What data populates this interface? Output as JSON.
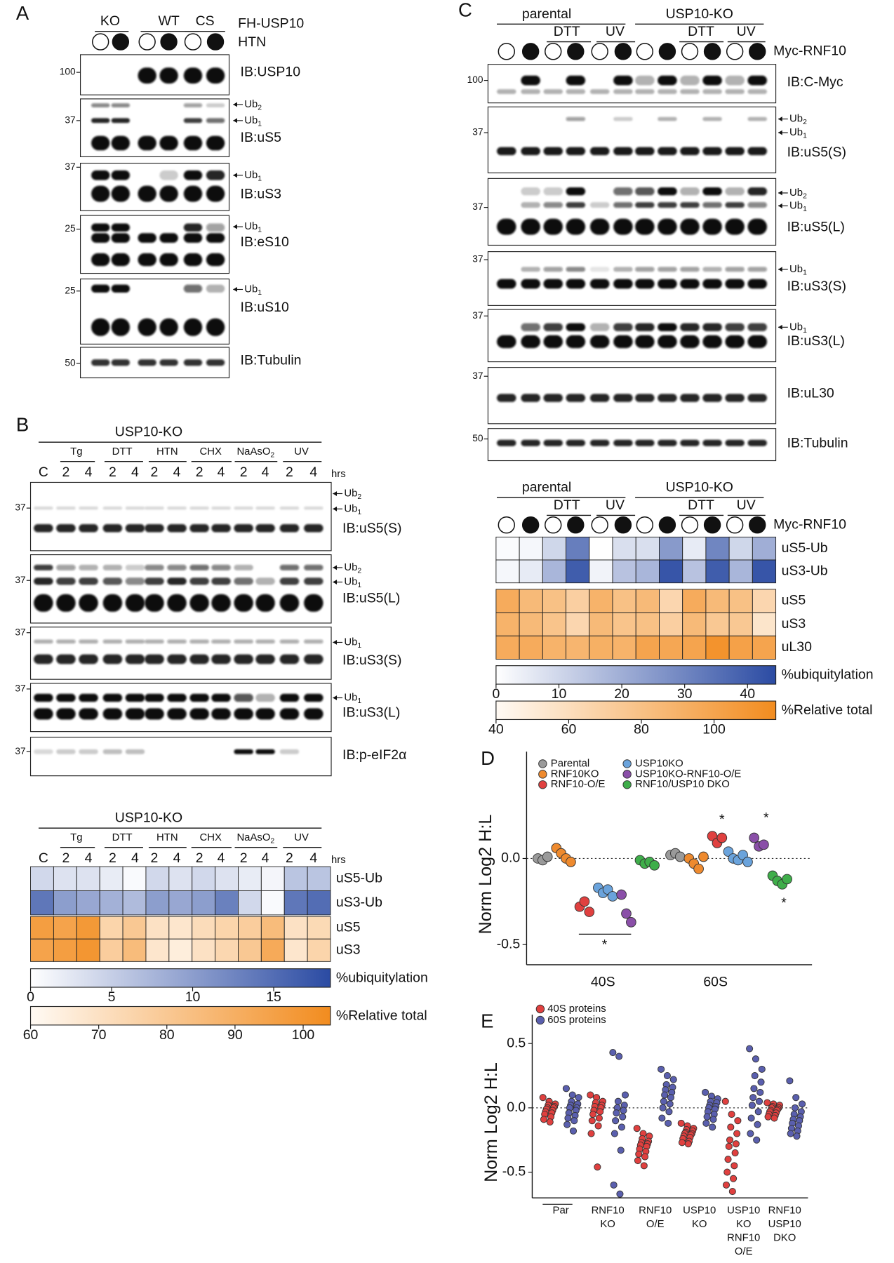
{
  "panel_a": {
    "label": "A",
    "groups": [
      "KO",
      "WT",
      "CS"
    ],
    "construct": "FH-USP10",
    "treatment": "HTN",
    "blots": [
      {
        "mw": 100,
        "antibody": "IB:USP10",
        "marks": []
      },
      {
        "mw": 37,
        "antibody": "IB:uS5",
        "marks": [
          {
            "text": "Ub",
            "sub": "2"
          },
          {
            "text": "Ub",
            "sub": "1"
          }
        ]
      },
      {
        "mw": 37,
        "antibody": "IB:uS3",
        "marks": [
          {
            "text": "Ub",
            "sub": "1"
          }
        ]
      },
      {
        "mw": 25,
        "antibody": "IB:eS10",
        "marks": [
          {
            "text": "Ub",
            "sub": "1"
          }
        ]
      },
      {
        "mw": 25,
        "antibody": "IB:uS10",
        "marks": [
          {
            "text": "Ub",
            "sub": "1"
          }
        ]
      },
      {
        "mw": 50,
        "antibody": "IB:Tubulin",
        "marks": []
      }
    ]
  },
  "panel_b": {
    "label": "B",
    "cell_line": "USP10-KO",
    "groups": [
      "Tg",
      "DTT",
      "HTN",
      "CHX",
      {
        "text": "NaAsO",
        "sub": "2"
      },
      "UV"
    ],
    "lanes": [
      "C",
      2,
      4,
      2,
      4,
      2,
      4,
      2,
      4,
      2,
      4,
      2,
      4
    ],
    "unit": "hrs",
    "blots": [
      {
        "mw": 37,
        "antibody": "IB:uS5(S)",
        "marks": [
          {
            "text": "Ub",
            "sub": "2"
          },
          {
            "text": "Ub",
            "sub": "1"
          }
        ]
      },
      {
        "mw": 37,
        "antibody": "IB:uS5(L)",
        "marks": [
          {
            "text": "Ub",
            "sub": "2"
          },
          {
            "text": "Ub",
            "sub": "1"
          }
        ]
      },
      {
        "mw": 37,
        "antibody": "IB:uS3(S)",
        "marks": [
          {
            "text": "Ub",
            "sub": "1"
          }
        ]
      },
      {
        "mw": 37,
        "antibody": "IB:uS3(L)",
        "marks": [
          {
            "text": "Ub",
            "sub": "1"
          }
        ]
      },
      {
        "mw": 37,
        "antibody": "IB:p-eIF2α",
        "marks": []
      }
    ],
    "heatmap": {
      "cell_line": "USP10-KO",
      "groups": [
        "Tg",
        "DTT",
        "HTN",
        "CHX",
        {
          "text": "NaAsO",
          "sub": "2"
        },
        "UV"
      ],
      "lanes": [
        "C",
        2,
        4,
        2,
        4,
        2,
        4,
        2,
        4,
        2,
        4,
        2,
        4
      ],
      "unit": "hrs",
      "ubiquitylation": {
        "rows": [
          "uS5-Ub",
          "uS3-Ub"
        ],
        "values": [
          [
            4,
            3,
            3,
            2,
            0.5,
            4,
            3,
            4,
            3,
            2,
            1,
            6,
            6
          ],
          [
            14,
            10,
            9,
            8,
            7,
            10,
            9,
            10,
            13,
            4,
            0.5,
            14,
            15
          ]
        ],
        "scale": {
          "label": "%ubiquitylation",
          "lim": [
            0,
            18.5
          ],
          "ticks": [
            0,
            5,
            10,
            15
          ],
          "colors": [
            "#ffffff",
            "#2b4ba3"
          ]
        }
      },
      "relative_total": {
        "rows": [
          "uS5",
          "uS3"
        ],
        "values": [
          [
            97,
            95,
            99,
            75,
            80,
            70,
            68,
            72,
            75,
            78,
            85,
            70,
            73
          ],
          [
            95,
            97,
            100,
            78,
            85,
            68,
            65,
            70,
            74,
            80,
            92,
            68,
            75
          ]
        ],
        "scale": {
          "label": "%Relative total",
          "lim": [
            60,
            104
          ],
          "ticks": [
            60,
            70,
            80,
            90,
            100
          ],
          "colors": [
            "#fffaf4",
            "#f28c1f"
          ]
        }
      }
    }
  },
  "panel_c": {
    "label": "C",
    "lines": [
      "parental",
      "USP10-KO"
    ],
    "treatments": [
      "DTT",
      "UV",
      "DTT",
      "UV"
    ],
    "construct": "Myc-RNF10",
    "blots": [
      {
        "mw": 100,
        "antibody": "IB:C-Myc",
        "marks": []
      },
      {
        "mw": 37,
        "antibody": "IB:uS5(S)",
        "marks": [
          {
            "text": "Ub",
            "sub": "2"
          },
          {
            "text": "Ub",
            "sub": "1"
          }
        ]
      },
      {
        "mw": 37,
        "antibody": "IB:uS5(L)",
        "marks": [
          {
            "text": "Ub",
            "sub": "2"
          },
          {
            "text": "Ub",
            "sub": "1"
          }
        ]
      },
      {
        "mw": 37,
        "antibody": "IB:uS3(S)",
        "marks": [
          {
            "text": "Ub",
            "sub": "1"
          }
        ]
      },
      {
        "mw": 37,
        "antibody": "IB:uS3(L)",
        "marks": [
          {
            "text": "Ub",
            "sub": "1"
          }
        ]
      },
      {
        "mw": 37,
        "antibody": "IB:uL30",
        "marks": []
      },
      {
        "mw": 50,
        "antibody": "IB:Tubulin",
        "marks": []
      }
    ],
    "heatmap": {
      "lines": [
        "parental",
        "USP10-KO"
      ],
      "treatments": [
        "DTT",
        "UV",
        "DTT",
        "UV"
      ],
      "construct": "Myc-RNF10",
      "ubiquitylation": {
        "rows": [
          "uS5-Ub",
          "uS3-Ub"
        ],
        "values": [
          [
            1,
            2,
            10,
            32,
            0,
            8,
            8,
            25,
            5,
            30,
            10,
            20
          ],
          [
            2,
            5,
            18,
            40,
            3,
            15,
            18,
            42,
            15,
            40,
            18,
            42
          ]
        ],
        "scale": {
          "label": "%ubiquitylation",
          "lim": [
            0,
            44.5
          ],
          "ticks": [
            0,
            10,
            20,
            30,
            40
          ],
          "colors": [
            "#ffffff",
            "#2b4ba3"
          ]
        }
      },
      "relative_total": {
        "rows": [
          "uS5",
          "uS3",
          "uL30"
        ],
        "values": [
          [
            95,
            85,
            80,
            70,
            90,
            80,
            85,
            65,
            95,
            85,
            80,
            65
          ],
          [
            90,
            85,
            78,
            65,
            85,
            78,
            80,
            70,
            85,
            75,
            75,
            55
          ],
          [
            95,
            95,
            90,
            88,
            92,
            90,
            100,
            98,
            100,
            112,
            102,
            100
          ]
        ],
        "scale": {
          "label": "%Relative total",
          "lim": [
            40,
            117
          ],
          "ticks": [
            40,
            60,
            80,
            100
          ],
          "colors": [
            "#fffaf4",
            "#f28c1f"
          ]
        }
      }
    }
  },
  "chart_data": [
    {
      "type": "dot",
      "panel": "D",
      "ylabel": "Norm Log2 H:L",
      "categories": [
        "40S",
        "60S"
      ],
      "ylim": [
        -0.617,
        0.62
      ],
      "yticks": [
        {
          "value": 0,
          "label": "0.0"
        },
        {
          "value": -0.5,
          "label": "-0.5"
        }
      ],
      "reference_line": 0,
      "series": [
        {
          "name": "Parental",
          "color": "#9a9a9a",
          "values": [
            [
              0,
              -0.01,
              0.01
            ],
            [
              0.02,
              0.03,
              0.01
            ]
          ]
        },
        {
          "name": "RNF10KO",
          "color": "#ee8a2e",
          "values": [
            [
              0.06,
              0.03,
              0,
              -0.02
            ],
            [
              0,
              -0.03,
              -0.06,
              0.01
            ]
          ]
        },
        {
          "name": "RNF10-O/E",
          "color": "#e0403f",
          "values": [
            [
              -0.28,
              -0.25,
              -0.31
            ],
            [
              0.13,
              0.09,
              0.12
            ]
          ]
        },
        {
          "name": "USP10KO",
          "color": "#6aa3dc",
          "values": [
            [
              -0.17,
              -0.2,
              -0.18,
              -0.22
            ],
            [
              0.04,
              0,
              -0.01,
              0.02,
              -0.02
            ]
          ]
        },
        {
          "name": "USP10KO-RNF10-O/E",
          "color": "#8a4fa8",
          "values": [
            [
              -0.21,
              -0.32,
              -0.37
            ],
            [
              0.12,
              0.07,
              0.08
            ]
          ]
        },
        {
          "name": "RNF10/USP10 DKO",
          "color": "#3fae4a",
          "values": [
            [
              -0.01,
              -0.03,
              -0.02,
              -0.04
            ],
            [
              -0.1,
              -0.13,
              -0.15,
              -0.12
            ]
          ]
        }
      ],
      "annotations": [
        "*",
        "*",
        "*",
        "*"
      ]
    },
    {
      "type": "dot",
      "panel": "E",
      "ylabel": "Norm Log2 H:L",
      "categories": [
        [
          "Par"
        ],
        [
          "RNF10",
          "KO"
        ],
        [
          "RNF10",
          "O/E"
        ],
        [
          "USP10",
          "KO"
        ],
        [
          "USP10",
          "KO",
          "RNF10",
          "O/E"
        ],
        [
          "RNF10",
          "USP10",
          "DKO"
        ]
      ],
      "ylim": [
        -0.7,
        0.725
      ],
      "yticks": [
        {
          "value": 0.5,
          "label": "0.5"
        },
        {
          "value": 0,
          "label": "0.0"
        },
        {
          "value": -0.5,
          "label": "-0.5"
        }
      ],
      "reference_line": 0,
      "series": [
        {
          "name": "40S proteins",
          "color": "#e0403f",
          "values": [
            [
              0.08,
              0.05,
              0.03,
              0.02,
              0.01,
              0,
              0,
              -0.01,
              -0.02,
              -0.03,
              -0.04,
              -0.05,
              -0.07,
              -0.09,
              -0.11
            ],
            [
              0.1,
              0.08,
              0.05,
              0.04,
              0.02,
              0.01,
              0,
              -0.02,
              -0.03,
              -0.05,
              -0.08,
              -0.1,
              -0.14,
              -0.2,
              -0.46
            ],
            [
              -0.16,
              -0.2,
              -0.22,
              -0.24,
              -0.26,
              -0.27,
              -0.28,
              -0.29,
              -0.3,
              -0.32,
              -0.34,
              -0.36,
              -0.38,
              -0.41,
              -0.45
            ],
            [
              -0.12,
              -0.14,
              -0.16,
              -0.17,
              -0.18,
              -0.19,
              -0.2,
              -0.2,
              -0.21,
              -0.22,
              -0.23,
              -0.24,
              -0.26,
              -0.27,
              -0.28
            ],
            [
              0.05,
              -0.05,
              -0.1,
              -0.15,
              -0.2,
              -0.25,
              -0.28,
              -0.3,
              -0.35,
              -0.4,
              -0.45,
              -0.5,
              -0.55,
              -0.6,
              -0.65
            ],
            [
              0.04,
              0.03,
              0.02,
              0.01,
              0,
              0,
              -0.01,
              -0.02,
              -0.02,
              -0.03,
              -0.04,
              -0.05,
              -0.06,
              -0.07,
              -0.08
            ]
          ]
        },
        {
          "name": "60S proteins",
          "color": "#5a5fae",
          "values": [
            [
              0.15,
              0.1,
              0.08,
              0.05,
              0.03,
              0.02,
              0,
              0,
              -0.02,
              -0.04,
              -0.06,
              -0.08,
              -0.1,
              -0.13,
              -0.18
            ],
            [
              0.43,
              0.4,
              0.1,
              0.05,
              0.02,
              0,
              -0.02,
              -0.04,
              -0.07,
              -0.1,
              -0.15,
              -0.2,
              -0.33,
              -0.6,
              -0.67
            ],
            [
              0.3,
              0.25,
              0.22,
              0.18,
              0.16,
              0.14,
              0.12,
              0.1,
              0.08,
              0.05,
              0.03,
              0,
              -0.03,
              -0.08,
              -0.12
            ],
            [
              0.12,
              0.09,
              0.07,
              0.05,
              0.04,
              0.02,
              0.01,
              0,
              -0.01,
              -0.03,
              -0.05,
              -0.07,
              -0.09,
              -0.12,
              -0.15
            ],
            [
              0.46,
              0.38,
              0.3,
              0.25,
              0.2,
              0.15,
              0.12,
              0.08,
              0.05,
              0.02,
              -0.03,
              -0.08,
              -0.13,
              -0.2,
              -0.25
            ],
            [
              0.21,
              0.08,
              0.03,
              0,
              -0.03,
              -0.05,
              -0.07,
              -0.09,
              -0.1,
              -0.12,
              -0.14,
              -0.16,
              -0.18,
              -0.2,
              -0.22
            ]
          ]
        }
      ]
    }
  ]
}
